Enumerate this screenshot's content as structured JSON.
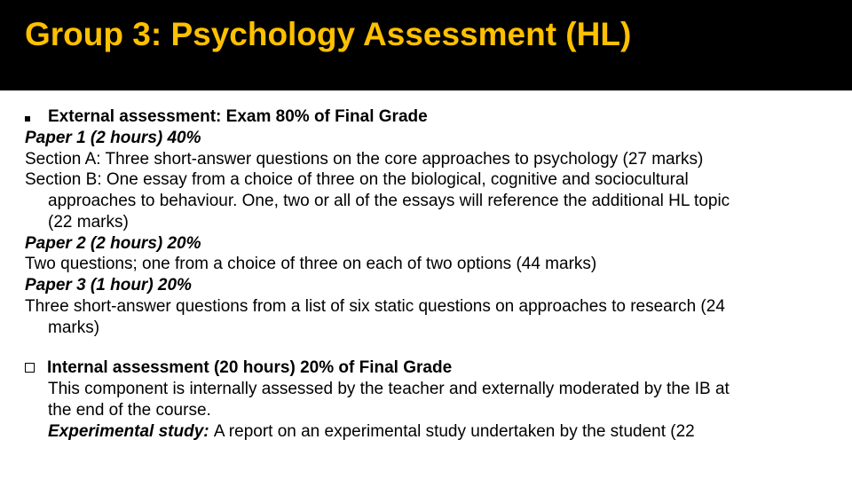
{
  "header": {
    "title": "Group 3: Psychology Assessment (HL)",
    "title_color": "#ffc000",
    "bg_color": "#000000",
    "title_fontsize": 37
  },
  "body": {
    "fontsize": 19,
    "text_color": "#000000",
    "bg_color": "#ffffff"
  },
  "external": {
    "heading": "External assessment: Exam 80% of Final Grade",
    "paper1_title": "Paper 1 (2 hours)  40%",
    "paper1_secA": "Section A: Three short-answer questions on the core approaches to psychology (27 marks)",
    "paper1_secB_l1": "Section B: One essay from a choice of three on the biological, cognitive and sociocultural",
    "paper1_secB_l2": "approaches to  behaviour. One, two or all of the essays will reference the additional HL topic",
    "paper1_secB_l3": "(22 marks)",
    "paper2_title": "Paper 2 (2 hours)  20%",
    "paper2_body": "Two questions; one from a choice of three on each of two options (44 marks)",
    "paper3_title": "Paper 3 (1 hour)    20%",
    "paper3_body_l1": "Three short-answer questions from a list of six static questions on approaches to research (24",
    "paper3_body_l2": "marks)"
  },
  "internal": {
    "heading": "Internal assessment (20 hours)  20% of Final Grade",
    "body_l1": "This component is internally assessed by the teacher and externally moderated by the IB at",
    "body_l2": "the end of the course.",
    "exp_label": "Experimental study:  ",
    "exp_rest": "A report on an experimental study undertaken by the student (22"
  }
}
